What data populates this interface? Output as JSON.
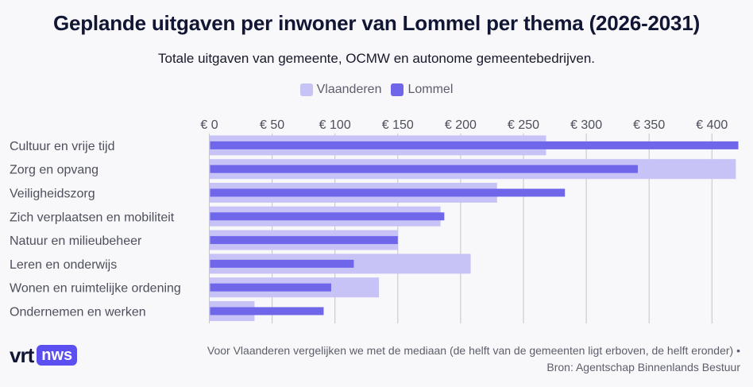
{
  "header": {
    "title": "Geplande uitgaven per inwoner van Lommel per thema (2026-2031)",
    "subtitle": "Totale uitgaven van gemeente, OCMW en autonome gemeentebedrijven."
  },
  "legend": [
    {
      "label": "Vlaanderen",
      "color": "#c7c3f6"
    },
    {
      "label": "Lommel",
      "color": "#6f66ea"
    }
  ],
  "chart_data": {
    "type": "bar",
    "orientation": "horizontal",
    "title": "Geplande uitgaven per inwoner van Lommel per thema (2026-2031)",
    "subtitle": "Totale uitgaven van gemeente, OCMW en autonome gemeentebedrijven.",
    "xlabel": "",
    "ylabel": "",
    "xlim": [
      0,
      420
    ],
    "grid": true,
    "legend_position": "top-center",
    "ticks": [
      0,
      50,
      100,
      150,
      200,
      250,
      300,
      350,
      400
    ],
    "tick_labels": [
      "€ 0",
      "€ 50",
      "€ 100",
      "€ 150",
      "€ 200",
      "€ 250",
      "€ 300",
      "€ 350",
      "€ 400"
    ],
    "categories": [
      "Cultuur en vrije tijd",
      "Zorg en opvang",
      "Veiligheidszorg",
      "Zich verplaatsen en mobiliteit",
      "Natuur en milieubeheer",
      "Leren en onderwijs",
      "Wonen en ruimtelijke ordening",
      "Ondernemen en werken"
    ],
    "series": [
      {
        "name": "Vlaanderen",
        "color": "#c7c3f6",
        "values": [
          268,
          419,
          229,
          184,
          150,
          208,
          135,
          36
        ]
      },
      {
        "name": "Lommel",
        "color": "#6f66ea",
        "values": [
          421,
          341,
          283,
          187,
          150,
          115,
          97,
          91
        ]
      }
    ]
  },
  "footer": {
    "note_line1": "Voor Vlaanderen vergelijken we met de mediaan (de helft van de gemeenten ligt erboven, de helft eronder) •",
    "note_line2": "Bron: Agentschap Binnenlands Bestuur",
    "logo_vrt": "vrt",
    "logo_nws": "nws"
  }
}
